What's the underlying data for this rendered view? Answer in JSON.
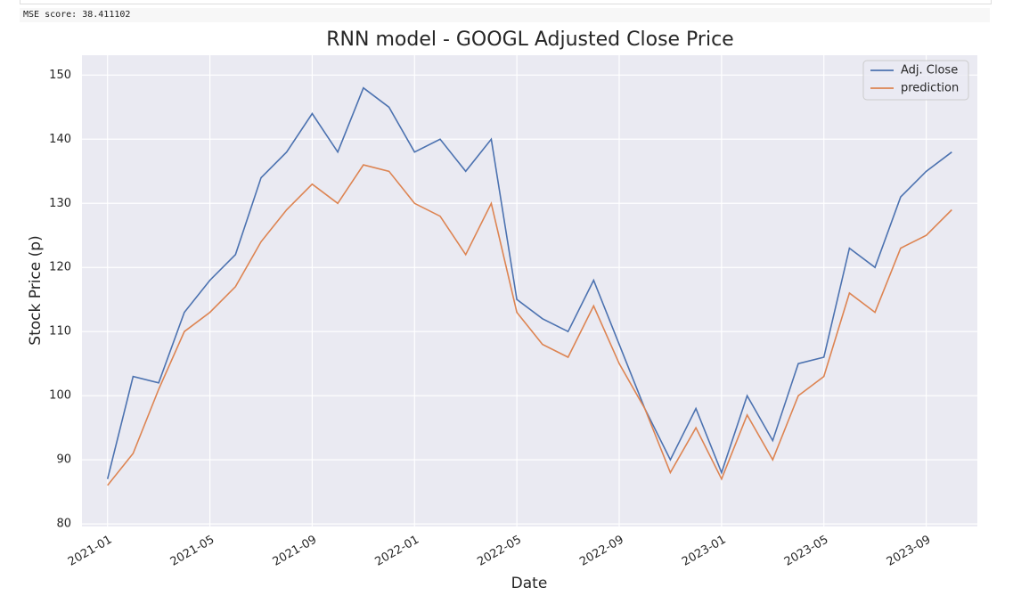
{
  "output_text": "MSE score: 38.411102",
  "chart_data": {
    "type": "line",
    "title": "RNN model - GOOGL Adjusted Close Price",
    "xlabel": "Date",
    "ylabel": "Stock Price (p)",
    "x": [
      "2021-01",
      "2021-02",
      "2021-03",
      "2021-04",
      "2021-05",
      "2021-06",
      "2021-07",
      "2021-08",
      "2021-09",
      "2021-10",
      "2021-11",
      "2021-12",
      "2022-01",
      "2022-02",
      "2022-03",
      "2022-04",
      "2022-05",
      "2022-06",
      "2022-07",
      "2022-08",
      "2022-09",
      "2022-10",
      "2022-11",
      "2022-12",
      "2023-01",
      "2023-02",
      "2023-03",
      "2023-04",
      "2023-05",
      "2023-06",
      "2023-07",
      "2023-08",
      "2023-09",
      "2023-10"
    ],
    "series": [
      {
        "name": "Adj. Close",
        "color": "#4c72b0",
        "values": [
          87,
          103,
          102,
          113,
          118,
          122,
          134,
          138,
          144,
          138,
          148,
          145,
          138,
          140,
          135,
          140,
          115,
          112,
          110,
          118,
          108,
          98,
          90,
          98,
          88,
          100,
          93,
          105,
          106,
          123,
          120,
          131,
          135,
          138
        ]
      },
      {
        "name": "prediction",
        "color": "#dd8452",
        "values": [
          86,
          91,
          101,
          110,
          113,
          117,
          124,
          129,
          133,
          130,
          136,
          135,
          130,
          128,
          122,
          130,
          113,
          108,
          106,
          114,
          105,
          98,
          88,
          95,
          87,
          97,
          90,
          100,
          103,
          116,
          113,
          123,
          125,
          129
        ]
      }
    ],
    "xlim": [
      "2020-12",
      "2023-11"
    ],
    "xticks": [
      "2021-01",
      "2021-05",
      "2021-09",
      "2022-01",
      "2022-05",
      "2022-09",
      "2023-01",
      "2023-05",
      "2023-09"
    ],
    "ylim": [
      79.6,
      153.1
    ],
    "yticks": [
      80,
      90,
      100,
      110,
      120,
      130,
      140,
      150
    ],
    "grid": true,
    "legend": "upper right"
  }
}
